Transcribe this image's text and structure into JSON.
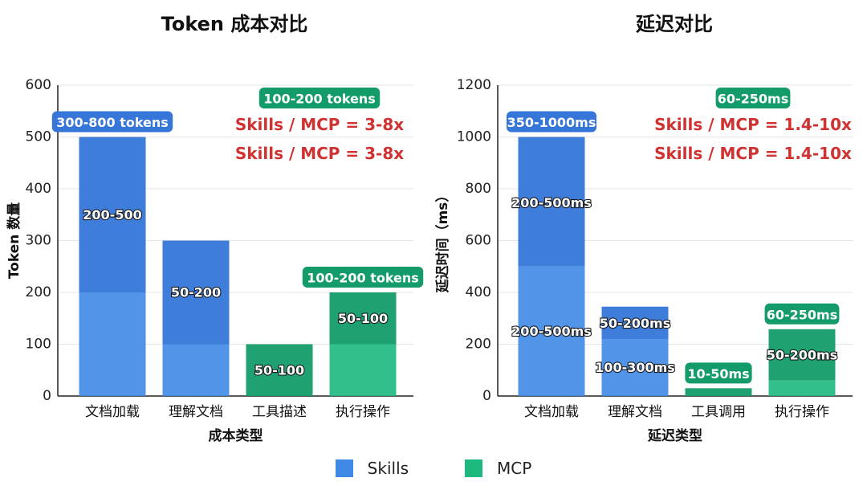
{
  "colors": {
    "skills": "#3f88e6",
    "skills_dark": "#3576d8",
    "mcp": "#1db87e",
    "mcp_dark": "#139c6a",
    "ratio_text": "#d03232",
    "grid": "#e6e6e6"
  },
  "legend": {
    "skills": "Skills",
    "mcp": "MCP"
  },
  "chart_data": [
    {
      "type": "bar",
      "title": "Token 成本对比",
      "xlabel": "成本类型",
      "ylabel": "Token 数量",
      "ylim": [
        0,
        600
      ],
      "yticks": [
        0,
        100,
        200,
        300,
        400,
        500,
        600
      ],
      "categories": [
        "文档加载",
        "理解文档",
        "工具描述",
        "执行操作"
      ],
      "series_of_bar": [
        "Skills",
        "Skills",
        "MCP",
        "MCP"
      ],
      "values": [
        500,
        300,
        100,
        200
      ],
      "split_values": [
        200,
        100,
        null,
        100
      ],
      "bar_labels": [
        {
          "text": "200-500",
          "y": 350
        },
        {
          "text": "50-200",
          "y": 200
        },
        {
          "text": "50-100",
          "y": 50
        },
        {
          "text": "50-100",
          "y": 150
        }
      ],
      "top_badges": [
        {
          "text": "300-800 tokens",
          "bar": 0,
          "series": "Skills"
        },
        {
          "text": "100-200 tokens",
          "bar": 3,
          "series": "MCP"
        }
      ],
      "annotations": {
        "badge": "100-200 tokens",
        "ratios": [
          "Skills / MCP = 3-8x",
          "Skills / MCP = 3-8x"
        ]
      }
    },
    {
      "type": "bar",
      "title": "延迟对比",
      "xlabel": "延迟类型",
      "ylabel": "延迟时间（ms）",
      "ylim": [
        0,
        1200
      ],
      "yticks": [
        0,
        200,
        400,
        600,
        800,
        1000,
        1200
      ],
      "categories": [
        "文档加载",
        "理解文档",
        "工具调用",
        "执行操作"
      ],
      "series_of_bar": [
        "Skills",
        "Skills",
        "MCP",
        "MCP"
      ],
      "values": [
        1000,
        345,
        30,
        258
      ],
      "split_values": [
        500,
        220,
        null,
        60
      ],
      "bar_labels": [
        {
          "text": "200-500ms",
          "y": 745
        },
        {
          "text": "200-500ms",
          "y": 250
        },
        {
          "text": "50-200ms",
          "y": 280
        },
        {
          "text": "100-300ms",
          "y": 110
        },
        {
          "text": "50-200ms",
          "y": 158
        }
      ],
      "top_badges": [
        {
          "text": "350-1000ms",
          "bar": 0,
          "series": "Skills"
        },
        {
          "text": "10-50ms",
          "bar": 2,
          "series": "MCP"
        },
        {
          "text": "60-250ms",
          "bar": 3,
          "series": "MCP"
        }
      ],
      "annotations": {
        "badge": "60-250ms",
        "ratios": [
          "Skills / MCP = 1.4-10x",
          "Skills / MCP = 1.4-10x"
        ]
      }
    }
  ]
}
